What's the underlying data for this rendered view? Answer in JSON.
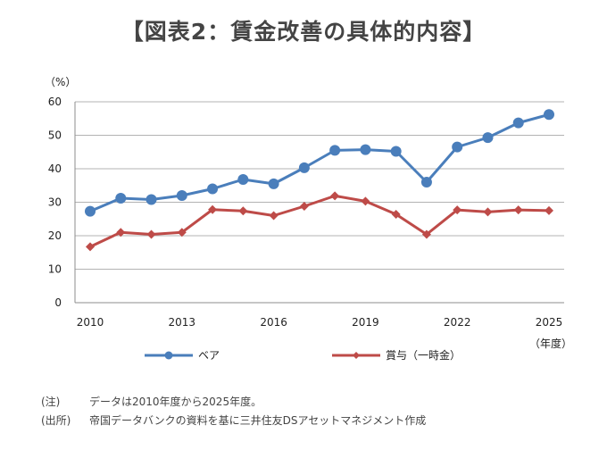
{
  "title": "【図表2：賃金改善の具体的内容】",
  "chart_data": {
    "type": "line",
    "x": [
      2010,
      2011,
      2012,
      2013,
      2014,
      2015,
      2016,
      2017,
      2018,
      2019,
      2020,
      2021,
      2022,
      2023,
      2024,
      2025
    ],
    "x_tick_labels": [
      "2010",
      "2013",
      "2016",
      "2019",
      "2022",
      "2025"
    ],
    "ylim": [
      0,
      60
    ],
    "y_ticks": [
      "0",
      "10",
      "20",
      "30",
      "40",
      "50",
      "60"
    ],
    "ylabel": "（%）",
    "xlabel": "（年度）",
    "grid": "horizontal",
    "legend_position": "bottom",
    "series": [
      {
        "name": "ベア",
        "color": "#4a7ebb",
        "values": [
          27.3,
          31.2,
          30.8,
          32.0,
          34.0,
          36.8,
          35.5,
          40.3,
          45.5,
          45.7,
          45.2,
          36.0,
          46.5,
          49.3,
          53.7,
          56.2
        ]
      },
      {
        "name": "賞与（一時金）",
        "color": "#be4b48",
        "values": [
          16.7,
          21.0,
          20.4,
          21.0,
          27.8,
          27.4,
          26.0,
          28.8,
          31.9,
          30.3,
          26.4,
          20.4,
          27.7,
          27.1,
          27.7,
          27.5
        ]
      }
    ]
  },
  "notes": [
    {
      "label": "(注)",
      "text": "データは2010年度から2025年度。"
    },
    {
      "label": "(出所)",
      "text": "帝国データバンクの資料を基に三井住友DSアセットマネジメント作成"
    }
  ]
}
